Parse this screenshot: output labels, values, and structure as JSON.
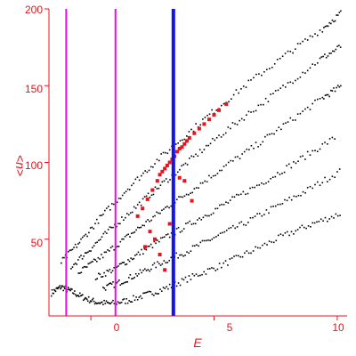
{
  "chart_data": {
    "type": "scatter",
    "title": "",
    "xlabel": "E",
    "ylabel": "<n>",
    "xlim": [
      -1.7,
      10.4
    ],
    "ylim": [
      0,
      200
    ],
    "x_ticks": [
      "0",
      "5",
      "10"
    ],
    "y_ticks": [
      "50",
      "100",
      "150",
      "200"
    ],
    "grid": false,
    "colors": {
      "axis": "#e8141c",
      "black_series": "#000000",
      "red_series": "#e8141c",
      "magenta_lines": "#e60ee6",
      "blue_line": "#1414e6"
    },
    "vertical_lines": [
      {
        "x": -1.0,
        "color": "magenta"
      },
      {
        "x": 1.0,
        "color": "magenta"
      },
      {
        "x": 3.35,
        "color": "blue"
      }
    ],
    "series": [
      {
        "color": "black",
        "bands": [
          {
            "x": [
              -1.6,
              -1.2,
              -0.8,
              -0.3,
              0.2,
              0.8,
              1.5,
              2.3,
              3.2,
              4.2,
              5.3,
              6.5,
              7.8,
              9.0,
              10.2
            ],
            "y": [
              15,
              19,
              16,
              12,
              9,
              8,
              10,
              14,
              19,
              26,
              33,
              42,
              52,
              60,
              67
            ]
          },
          {
            "x": [
              0.5,
              1.2,
              2.0,
              2.9,
              3.9,
              5.0,
              6.2,
              7.5,
              8.8,
              10.2
            ],
            "y": [
              18,
              22,
              28,
              35,
              42,
              51,
              60,
              71,
              82,
              95
            ]
          },
          {
            "x": [
              0.2,
              1.0,
              1.8,
              2.7,
              3.7,
              4.8,
              6.0,
              7.3,
              8.6,
              10.0
            ],
            "y": [
              25,
              31,
              39,
              48,
              57,
              67,
              78,
              90,
              103,
              117
            ]
          },
          {
            "x": [
              -0.5,
              0.3,
              1.2,
              2.1,
              3.1,
              4.2,
              5.4,
              6.7,
              8.0,
              9.4,
              10.2
            ],
            "y": [
              28,
              37,
              48,
              59,
              71,
              83,
              97,
              111,
              126,
              142,
              150
            ]
          },
          {
            "x": [
              -0.8,
              0.0,
              0.9,
              1.9,
              2.9,
              4.0,
              5.2,
              6.5,
              7.9,
              9.3,
              10.2
            ],
            "y": [
              32,
              44,
              58,
              72,
              86,
              101,
              117,
              133,
              150,
              167,
              176
            ]
          },
          {
            "x": [
              -1.2,
              -0.4,
              0.5,
              1.5,
              2.6,
              3.8,
              5.1,
              6.5,
              8.0,
              9.4,
              10.2
            ],
            "y": [
              35,
              49,
              66,
              83,
              100,
              117,
              135,
              153,
              171,
              187,
              198
            ]
          }
        ]
      },
      {
        "color": "red",
        "x": [
          1.9,
          2.1,
          2.3,
          2.5,
          2.7,
          2.8,
          2.9,
          3.0,
          3.1,
          3.2,
          3.3,
          3.4,
          3.5,
          3.6,
          3.7,
          3.8,
          3.9,
          4.0,
          4.2,
          4.4,
          4.6,
          4.8,
          5.0,
          5.2,
          5.5,
          2.2,
          2.4,
          2.6,
          2.8,
          3.0,
          3.2,
          3.6,
          3.8,
          4.1
        ],
        "y": [
          65,
          70,
          76,
          82,
          88,
          92,
          94,
          96,
          98,
          100,
          102,
          104,
          107,
          109,
          110,
          112,
          114,
          116,
          119,
          122,
          125,
          128,
          131,
          134,
          138,
          45,
          55,
          50,
          40,
          30,
          60,
          90,
          88,
          75
        ]
      }
    ]
  }
}
